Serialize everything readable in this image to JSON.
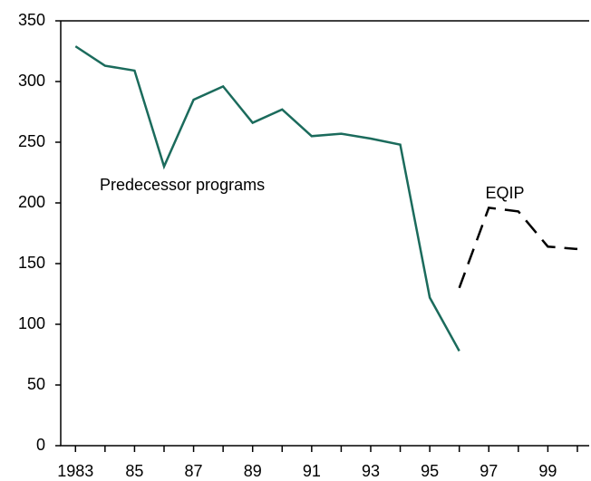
{
  "chart_data": {
    "type": "line",
    "series": [
      {
        "name": "Predecessor programs",
        "color": "#1b6b5c",
        "dash": false,
        "x": [
          1983,
          1984,
          1985,
          1986,
          1987,
          1988,
          1989,
          1990,
          1991,
          1992,
          1993,
          1994,
          1995,
          1996
        ],
        "values": [
          329,
          313,
          309,
          230,
          285,
          296,
          266,
          277,
          255,
          257,
          253,
          248,
          122,
          78
        ]
      },
      {
        "name": "EQIP",
        "color": "#000000",
        "dash": true,
        "x": [
          1996,
          1997,
          1998,
          1999,
          2000
        ],
        "values": [
          130,
          196,
          193,
          164,
          162
        ]
      }
    ],
    "xlim": [
      1982.5,
      2000.4
    ],
    "xticks": [
      {
        "value": 1983,
        "label": "1983"
      },
      {
        "value": 1985,
        "label": "85"
      },
      {
        "value": 1987,
        "label": "87"
      },
      {
        "value": 1989,
        "label": "89"
      },
      {
        "value": 1991,
        "label": "91"
      },
      {
        "value": 1993,
        "label": "93"
      },
      {
        "value": 1995,
        "label": "95"
      },
      {
        "value": 1997,
        "label": "97"
      },
      {
        "value": 1999,
        "label": "99"
      }
    ],
    "xminor_ticks": [
      1984,
      1986,
      1988,
      1990,
      1992,
      1994,
      1996,
      1998,
      2000
    ],
    "ylim": [
      0,
      350
    ],
    "yticks": [
      0,
      50,
      100,
      150,
      200,
      250,
      300,
      350
    ]
  }
}
